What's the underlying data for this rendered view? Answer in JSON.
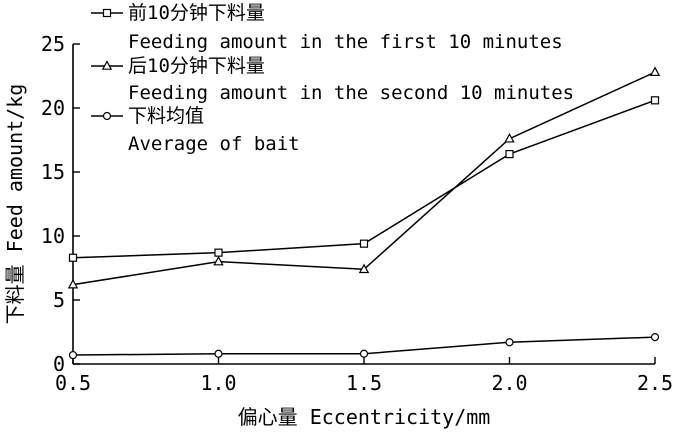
{
  "chart_data": {
    "type": "line",
    "x": [
      0.5,
      1.0,
      1.5,
      2.0,
      2.5
    ],
    "x_tick_labels": [
      "0.5",
      "1.0",
      "1.5",
      "2.0",
      "2.5"
    ],
    "y_tick_labels": [
      "0",
      "5",
      "10",
      "15",
      "20",
      "25"
    ],
    "xlim": [
      0.5,
      2.5
    ],
    "ylim": [
      0,
      25
    ],
    "xlabel": "偏心量 Eccentricity/mm",
    "ylabel": "下料量 Feed amount/kg",
    "grid": false,
    "legend_position": "top-left",
    "series": [
      {
        "name_cn": "前10分钟下料量",
        "name": "Feeding amount in the first 10 minutes",
        "marker": "square",
        "values": [
          8.3,
          8.7,
          9.4,
          16.4,
          20.6
        ]
      },
      {
        "name_cn": "后10分钟下料量",
        "name": "Feeding amount in the second 10 minutes",
        "marker": "triangle",
        "values": [
          6.2,
          8.0,
          7.4,
          17.6,
          22.8
        ]
      },
      {
        "name_cn": "下料均值",
        "name": "Average of bait",
        "marker": "circle",
        "values": [
          0.7,
          0.8,
          0.8,
          1.7,
          2.1
        ]
      }
    ],
    "colors": {
      "line": "#000000",
      "marker_fill": "#ffffff"
    }
  }
}
